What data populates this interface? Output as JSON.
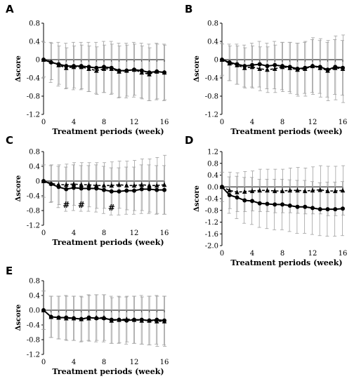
{
  "chart_data": [
    {
      "type": "line",
      "panel_label": "A",
      "xlabel": "Treatment periods (week)",
      "ylabel": "Δscore",
      "xlim": [
        0,
        16
      ],
      "ylim": [
        -1.2,
        0.8
      ],
      "xticks": [
        0,
        4,
        8,
        12,
        16
      ],
      "yticks": [
        0.8,
        0.4,
        0,
        -0.4,
        -0.8,
        -1.2
      ],
      "ytick_labels": [
        "0.8",
        "0.4",
        "0",
        "-0.4",
        "-0.8",
        "-1.2"
      ],
      "x": [
        0,
        1,
        2,
        3,
        4,
        5,
        6,
        7,
        8,
        9,
        10,
        11,
        12,
        13,
        14,
        15,
        16
      ],
      "series": [
        {
          "marker": "circle",
          "line": "solid",
          "values": [
            0,
            -0.06,
            -0.1,
            -0.14,
            -0.14,
            -0.14,
            -0.16,
            -0.18,
            -0.16,
            -0.18,
            -0.24,
            -0.24,
            -0.22,
            -0.24,
            -0.28,
            -0.26,
            -0.28
          ],
          "err": [
            0.4,
            0.44,
            0.48,
            0.5,
            0.52,
            0.52,
            0.54,
            0.56,
            0.56,
            0.58,
            0.6,
            0.6,
            0.6,
            0.6,
            0.62,
            0.62,
            0.62
          ]
        },
        {
          "marker": "triangle",
          "line": "dashed",
          "values": [
            0,
            -0.04,
            -0.12,
            -0.18,
            -0.16,
            -0.16,
            -0.2,
            -0.24,
            -0.2,
            -0.2,
            -0.26,
            -0.24,
            -0.22,
            -0.28,
            -0.32,
            -0.26,
            -0.28
          ],
          "err": [
            0.38,
            0.4,
            0.42,
            0.44,
            0.46,
            0.48,
            0.5,
            0.52,
            0.52,
            0.54,
            0.56,
            0.56,
            0.56,
            0.58,
            0.58,
            0.6,
            0.6
          ]
        }
      ],
      "annotations": []
    },
    {
      "type": "line",
      "panel_label": "B",
      "xlabel": "Treatment periods (week)",
      "ylabel": "Δscore",
      "xlim": [
        0,
        16
      ],
      "ylim": [
        -1.2,
        0.8
      ],
      "xticks": [
        0,
        4,
        8,
        12,
        16
      ],
      "yticks": [
        0.8,
        0.4,
        0,
        -0.4,
        -0.8,
        -1.2
      ],
      "ytick_labels": [
        "0.8",
        "0.4",
        "0",
        "-0.4",
        "-0.8",
        "-1.2"
      ],
      "x": [
        0,
        1,
        2,
        3,
        4,
        5,
        6,
        7,
        8,
        9,
        10,
        11,
        12,
        13,
        14,
        15,
        16
      ],
      "series": [
        {
          "marker": "circle",
          "line": "solid",
          "values": [
            0,
            -0.06,
            -0.1,
            -0.14,
            -0.12,
            -0.1,
            -0.14,
            -0.12,
            -0.14,
            -0.16,
            -0.2,
            -0.18,
            -0.14,
            -0.16,
            -0.22,
            -0.16,
            -0.18
          ],
          "err": [
            0.36,
            0.4,
            0.44,
            0.46,
            0.48,
            0.5,
            0.5,
            0.52,
            0.52,
            0.54,
            0.56,
            0.56,
            0.58,
            0.58,
            0.6,
            0.6,
            0.6
          ]
        },
        {
          "marker": "triangle",
          "line": "dashed",
          "values": [
            0,
            -0.08,
            -0.12,
            -0.18,
            -0.16,
            -0.2,
            -0.22,
            -0.2,
            -0.16,
            -0.18,
            -0.22,
            -0.2,
            -0.14,
            -0.18,
            -0.24,
            -0.18,
            -0.2
          ],
          "err": [
            0.34,
            0.38,
            0.42,
            0.44,
            0.46,
            0.48,
            0.5,
            0.52,
            0.54,
            0.56,
            0.58,
            0.6,
            0.62,
            0.64,
            0.66,
            0.7,
            0.74
          ]
        }
      ],
      "annotations": []
    },
    {
      "type": "line",
      "panel_label": "C",
      "xlabel": "Treatment periods (week)",
      "ylabel": "Δscore",
      "xlim": [
        0,
        16
      ],
      "ylim": [
        -1.2,
        0.8
      ],
      "xticks": [
        0,
        4,
        8,
        12,
        16
      ],
      "yticks": [
        0.8,
        0.4,
        0,
        -0.4,
        -0.8,
        -1.2
      ],
      "ytick_labels": [
        "0.8",
        "0.4",
        "0",
        "-0.4",
        "-0.8",
        "-1.2"
      ],
      "x": [
        0,
        1,
        2,
        3,
        4,
        5,
        6,
        7,
        8,
        9,
        10,
        11,
        12,
        13,
        14,
        15,
        16
      ],
      "series": [
        {
          "marker": "circle",
          "line": "solid",
          "values": [
            0,
            -0.08,
            -0.16,
            -0.22,
            -0.18,
            -0.2,
            -0.2,
            -0.2,
            -0.24,
            -0.28,
            -0.28,
            -0.26,
            -0.26,
            -0.22,
            -0.22,
            -0.24,
            -0.24
          ],
          "err": [
            0.44,
            0.5,
            0.56,
            0.6,
            0.62,
            0.62,
            0.62,
            0.64,
            0.64,
            0.64,
            0.64,
            0.64,
            0.64,
            0.66,
            0.66,
            0.66,
            0.66
          ]
        },
        {
          "marker": "triangle",
          "line": "dashed",
          "values": [
            0,
            -0.06,
            -0.1,
            -0.1,
            -0.08,
            -0.1,
            -0.1,
            -0.12,
            -0.12,
            -0.12,
            -0.1,
            -0.12,
            -0.12,
            -0.1,
            -0.12,
            -0.12,
            -0.1
          ],
          "err": [
            0.44,
            0.5,
            0.54,
            0.56,
            0.58,
            0.6,
            0.6,
            0.62,
            0.62,
            0.64,
            0.64,
            0.66,
            0.68,
            0.7,
            0.72,
            0.76,
            0.8
          ]
        }
      ],
      "annotations": [
        {
          "text": "#",
          "x": 3,
          "y": -0.72
        },
        {
          "text": "#",
          "x": 5,
          "y": -0.72
        },
        {
          "text": "#",
          "x": 9,
          "y": -0.8
        }
      ]
    },
    {
      "type": "line",
      "panel_label": "D",
      "xlabel": "Treatment periods (week)",
      "ylabel": "Δscore",
      "xlim": [
        0,
        16
      ],
      "ylim": [
        -2.0,
        1.2
      ],
      "xticks": [
        0,
        4,
        8,
        12,
        16
      ],
      "yticks": [
        1.2,
        0.8,
        0.4,
        0,
        -0.4,
        -0.8,
        -1.2,
        -1.6,
        -2.0
      ],
      "ytick_labels": [
        "1.2",
        "0.8",
        "0.4",
        "0.0",
        "-0.4",
        "-0.8",
        "-1.2",
        "-1.6",
        "-2.0"
      ],
      "x": [
        0,
        1,
        2,
        3,
        4,
        5,
        6,
        7,
        8,
        9,
        10,
        11,
        12,
        13,
        14,
        15,
        16
      ],
      "series": [
        {
          "marker": "circle",
          "line": "solid",
          "values": [
            0,
            -0.28,
            -0.36,
            -0.46,
            -0.48,
            -0.56,
            -0.58,
            -0.6,
            -0.6,
            -0.64,
            -0.68,
            -0.68,
            -0.72,
            -0.76,
            -0.76,
            -0.76,
            -0.74
          ],
          "err": [
            0.5,
            0.62,
            0.72,
            0.78,
            0.8,
            0.82,
            0.84,
            0.86,
            0.86,
            0.88,
            0.9,
            0.9,
            0.9,
            0.9,
            0.92,
            0.92,
            0.92
          ]
        },
        {
          "marker": "triangle",
          "line": "dashed",
          "values": [
            0,
            -0.12,
            -0.18,
            -0.16,
            -0.14,
            -0.12,
            -0.12,
            -0.14,
            -0.14,
            -0.12,
            -0.12,
            -0.14,
            -0.12,
            -0.1,
            -0.14,
            -0.14,
            -0.12
          ],
          "err": [
            0.5,
            0.62,
            0.66,
            0.68,
            0.68,
            0.72,
            0.72,
            0.74,
            0.74,
            0.76,
            0.78,
            0.78,
            0.8,
            0.82,
            0.84,
            0.84,
            0.84
          ]
        }
      ],
      "annotations": []
    },
    {
      "type": "line",
      "panel_label": "E",
      "xlabel": "Treatment periods (week)",
      "ylabel": "Δscore",
      "xlim": [
        0,
        16
      ],
      "ylim": [
        -1.2,
        0.8
      ],
      "xticks": [
        0,
        4,
        8,
        12,
        16
      ],
      "yticks": [
        0.8,
        0.4,
        0,
        -0.4,
        -0.8,
        -1.2
      ],
      "ytick_labels": [
        "0.8",
        "0.4",
        "0.0",
        "-0.4",
        "-0.8",
        "-1.2"
      ],
      "x": [
        0,
        1,
        2,
        3,
        4,
        5,
        6,
        7,
        8,
        9,
        10,
        11,
        12,
        13,
        14,
        15,
        16
      ],
      "series": [
        {
          "marker": "circle",
          "line": "solid",
          "values": [
            0,
            -0.18,
            -0.2,
            -0.2,
            -0.22,
            -0.24,
            -0.2,
            -0.22,
            -0.22,
            -0.26,
            -0.26,
            -0.28,
            -0.26,
            -0.26,
            -0.28,
            -0.26,
            -0.28
          ],
          "err": [
            0.52,
            0.56,
            0.58,
            0.6,
            0.6,
            0.62,
            0.62,
            0.64,
            0.64,
            0.64,
            0.64,
            0.64,
            0.64,
            0.66,
            0.66,
            0.66,
            0.66
          ]
        },
        {
          "marker": "triangle",
          "line": "dashed",
          "values": [
            0,
            -0.18,
            -0.2,
            -0.22,
            -0.22,
            -0.24,
            -0.22,
            -0.2,
            -0.2,
            -0.28,
            -0.26,
            -0.24,
            -0.26,
            -0.28,
            -0.28,
            -0.3,
            -0.3
          ],
          "err": [
            0.52,
            0.56,
            0.58,
            0.6,
            0.6,
            0.6,
            0.62,
            0.62,
            0.62,
            0.62,
            0.62,
            0.62,
            0.64,
            0.64,
            0.66,
            0.68,
            0.68
          ]
        }
      ],
      "annotations": []
    }
  ]
}
